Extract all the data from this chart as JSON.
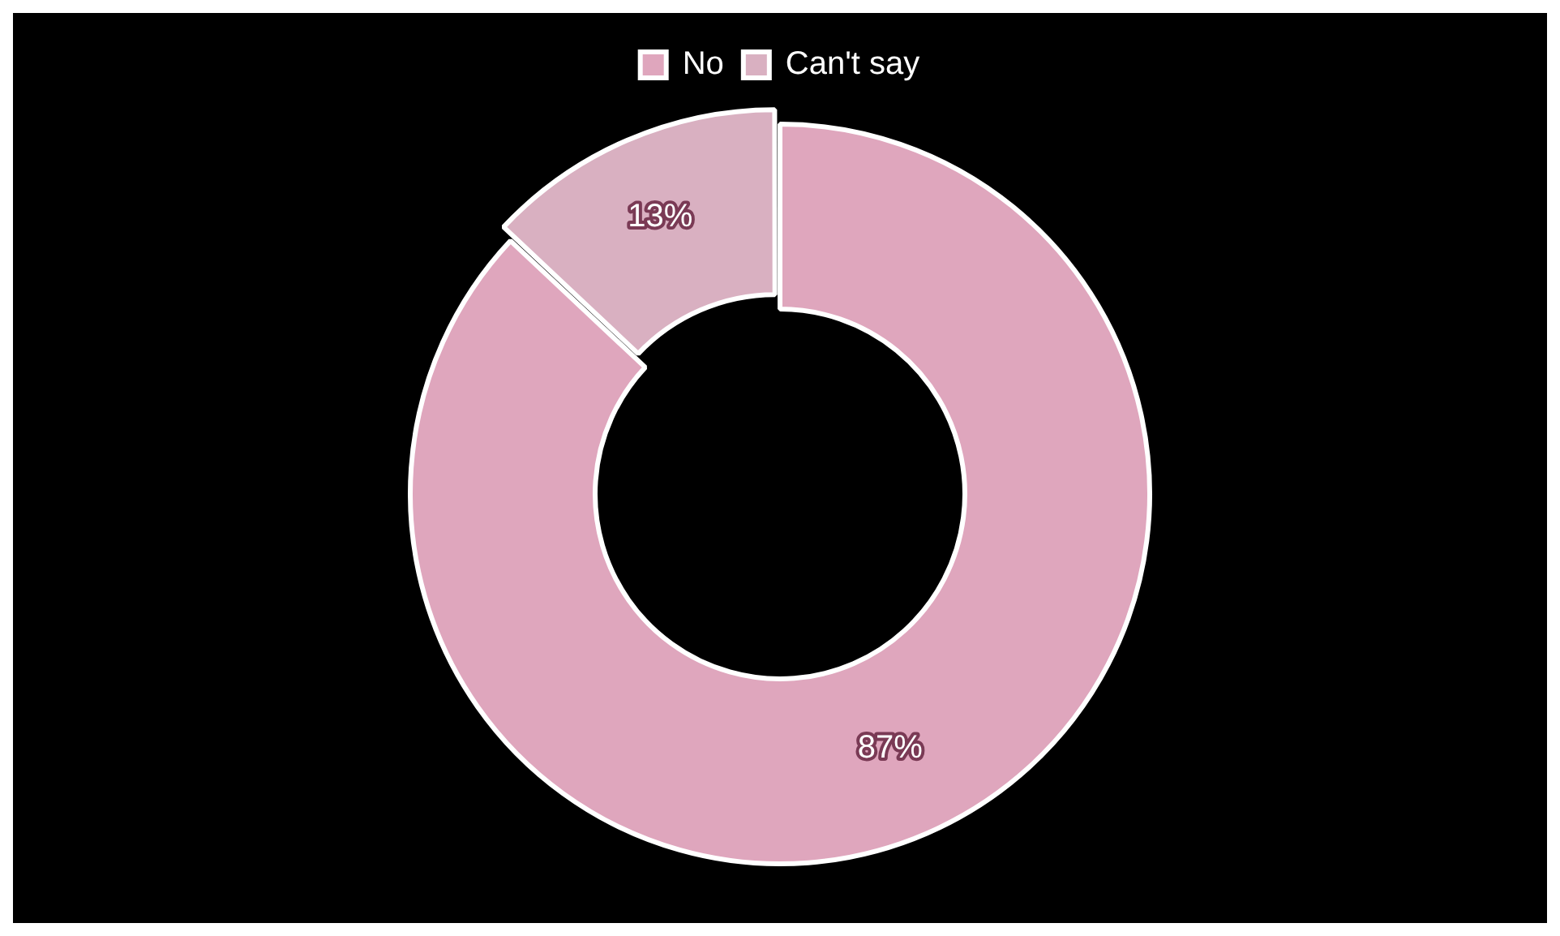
{
  "chart_data": {
    "type": "donut",
    "categories": [
      "No",
      "Can't say"
    ],
    "values": [
      87,
      13
    ],
    "colors": [
      "#dfa6bd",
      "#d9b0c1"
    ],
    "value_labels": [
      "87%",
      "13%"
    ],
    "legend": "top"
  }
}
